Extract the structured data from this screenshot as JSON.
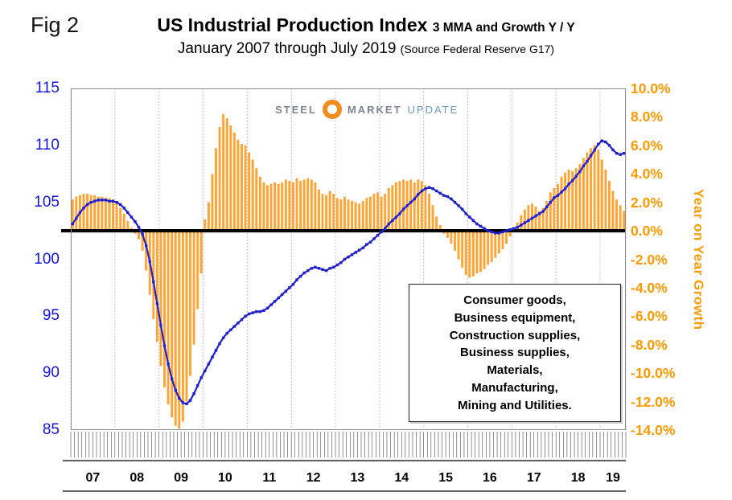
{
  "header": {
    "fig_label": "Fig 2",
    "title_main": "US Industrial Production Index",
    "title_suffix": "3 MMA and Growth Y / Y",
    "subtitle": "January 2007 through July 2019",
    "source": "(Source Federal Reserve G17)"
  },
  "logo": {
    "text_parts": [
      "STEEL",
      "MARKET",
      "UPDATE"
    ]
  },
  "annotation": {
    "lines": [
      "Consumer goods,",
      "Business equipment,",
      "Construction supplies,",
      "Business supplies,",
      "Materials,",
      "Manufacturing,",
      "Mining and Utilities."
    ]
  },
  "axes": {
    "left": {
      "color": "#1414e0",
      "ticks": [
        {
          "label": "115",
          "value": 115
        },
        {
          "label": "110",
          "value": 110
        },
        {
          "label": "105",
          "value": 105
        },
        {
          "label": "100",
          "value": 100
        },
        {
          "label": "95",
          "value": 95
        },
        {
          "label": "90",
          "value": 90
        },
        {
          "label": "85",
          "value": 85
        }
      ]
    },
    "right": {
      "color": "#ff9900",
      "title": "Year on Year Growth",
      "ticks": [
        {
          "label": "10.0%",
          "value": 10
        },
        {
          "label": "8.0%",
          "value": 8
        },
        {
          "label": "6.0%",
          "value": 6
        },
        {
          "label": "4.0%",
          "value": 4
        },
        {
          "label": "2.0%",
          "value": 2
        },
        {
          "label": "0.0%",
          "value": 0
        },
        {
          "label": "-2.0%",
          "value": -2
        },
        {
          "label": "-4.0%",
          "value": -4
        },
        {
          "label": "-6.0%",
          "value": -6
        },
        {
          "label": "-8.0%",
          "value": -8
        },
        {
          "label": "-10.0%",
          "value": -10
        },
        {
          "label": "-12.0%",
          "value": -12
        },
        {
          "label": "-14.0%",
          "value": -14
        }
      ]
    },
    "x": {
      "ticks": [
        "07",
        "08",
        "09",
        "10",
        "11",
        "12",
        "13",
        "14",
        "15",
        "16",
        "17",
        "18",
        "19"
      ]
    }
  },
  "colors": {
    "bar": "#ffa433",
    "line": "#2020cc",
    "zero_line": "#000000",
    "grid": "#b3b3b3",
    "comb": "#3a3a3a",
    "plot_border": "#8c8c8c"
  },
  "chart_data": {
    "type": "combo",
    "title": "US Industrial Production Index 3 MMA and Growth Y/Y, January 2007 through July 2019",
    "x_start": "2007-01",
    "x_end": "2019-07",
    "frequency": "monthly",
    "x_year_labels": [
      "07",
      "08",
      "09",
      "10",
      "11",
      "12",
      "13",
      "14",
      "15",
      "16",
      "17",
      "18",
      "19"
    ],
    "left_axis": {
      "label": "Industrial Production Index (3 MMA)",
      "range": [
        85,
        115
      ]
    },
    "right_axis": {
      "label": "Year on Year Growth",
      "range": [
        -14,
        10
      ]
    },
    "zero_reference": 0,
    "series": [
      {
        "name": "US Industrial Production Index (3 MMA)",
        "type": "line",
        "axis": "left",
        "color": "#2020cc",
        "values": [
          103.1,
          103.6,
          104.1,
          104.5,
          104.8,
          105.0,
          105.1,
          105.2,
          105.2,
          105.2,
          105.1,
          105.1,
          105.0,
          104.8,
          104.5,
          104.1,
          103.7,
          103.3,
          102.8,
          102.2,
          101.2,
          99.8,
          98.0,
          96.1,
          94.2,
          92.4,
          90.8,
          89.5,
          88.5,
          87.8,
          87.4,
          87.3,
          87.6,
          88.2,
          88.9,
          89.6,
          90.2,
          90.8,
          91.4,
          92.0,
          92.6,
          93.1,
          93.5,
          93.8,
          94.1,
          94.4,
          94.7,
          95.0,
          95.2,
          95.3,
          95.4,
          95.4,
          95.5,
          95.7,
          96.0,
          96.3,
          96.6,
          96.9,
          97.2,
          97.5,
          97.8,
          98.2,
          98.5,
          98.8,
          99.0,
          99.2,
          99.3,
          99.2,
          99.1,
          99.0,
          99.2,
          99.3,
          99.5,
          99.7,
          100.0,
          100.2,
          100.4,
          100.6,
          100.8,
          101.0,
          101.3,
          101.5,
          101.8,
          102.1,
          102.4,
          102.7,
          103.1,
          103.4,
          103.7,
          104.0,
          104.4,
          104.7,
          105.0,
          105.3,
          105.7,
          106.0,
          106.2,
          106.3,
          106.2,
          106.0,
          105.8,
          105.6,
          105.5,
          105.3,
          105.0,
          104.7,
          104.4,
          104.0,
          103.7,
          103.4,
          103.1,
          102.9,
          102.7,
          102.5,
          102.4,
          102.3,
          102.3,
          102.4,
          102.5,
          102.6,
          102.7,
          102.8,
          103.0,
          103.2,
          103.4,
          103.6,
          103.8,
          104.0,
          104.2,
          104.6,
          105.0,
          105.4,
          105.6,
          105.9,
          106.2,
          106.6,
          106.9,
          107.3,
          107.7,
          108.2,
          108.6,
          109.1,
          109.6,
          110.1,
          110.4,
          110.3,
          110.0,
          109.6,
          109.3,
          109.2,
          109.3
        ]
      },
      {
        "name": "Growth Y / Y",
        "type": "bar",
        "axis": "right",
        "color": "#ffa433",
        "values": [
          2.2,
          2.4,
          2.5,
          2.6,
          2.6,
          2.5,
          2.5,
          2.4,
          2.4,
          2.3,
          2.3,
          2.2,
          2.0,
          1.6,
          1.2,
          0.7,
          0.2,
          -0.2,
          -0.6,
          -1.4,
          -2.8,
          -4.5,
          -6.2,
          -7.8,
          -9.5,
          -11.0,
          -12.2,
          -13.1,
          -13.7,
          -13.9,
          -13.4,
          -12.0,
          -10.2,
          -8.0,
          -5.5,
          -3.0,
          0.8,
          2.0,
          4.0,
          5.8,
          7.3,
          8.2,
          7.9,
          7.4,
          6.9,
          6.4,
          6.1,
          6.0,
          5.5,
          5.0,
          4.4,
          3.8,
          3.4,
          3.2,
          3.3,
          3.4,
          3.3,
          3.4,
          3.6,
          3.5,
          3.4,
          3.7,
          3.5,
          3.6,
          3.7,
          3.6,
          3.4,
          2.9,
          2.6,
          2.5,
          2.8,
          2.6,
          2.3,
          2.2,
          2.4,
          2.2,
          2.1,
          2.0,
          1.9,
          2.1,
          2.3,
          2.4,
          2.6,
          2.7,
          2.4,
          2.6,
          3.0,
          3.2,
          3.4,
          3.5,
          3.6,
          3.5,
          3.6,
          3.4,
          3.6,
          3.5,
          3.2,
          2.6,
          1.8,
          1.0,
          0.4,
          -0.2,
          -0.5,
          -0.9,
          -1.4,
          -2.0,
          -2.6,
          -3.1,
          -3.3,
          -3.2,
          -3.0,
          -2.9,
          -2.7,
          -2.4,
          -2.2,
          -1.9,
          -1.6,
          -1.3,
          -0.9,
          -0.4,
          0.2,
          0.6,
          1.1,
          1.5,
          1.8,
          1.9,
          1.7,
          1.4,
          1.6,
          2.1,
          2.7,
          3.0,
          3.3,
          3.8,
          4.1,
          4.3,
          4.2,
          4.4,
          4.7,
          5.1,
          5.5,
          5.8,
          6.0,
          5.7,
          5.0,
          4.3,
          3.5,
          2.8,
          2.2,
          1.8,
          1.4
        ]
      }
    ]
  }
}
